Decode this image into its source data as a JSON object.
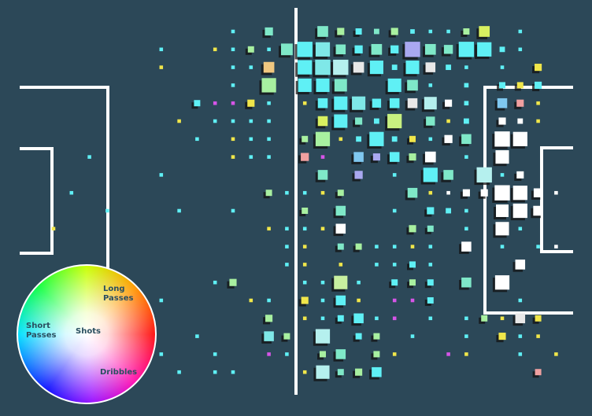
{
  "chart_data": {
    "type": "grid-squares",
    "legend": {
      "labels": [
        "Long Passes",
        "Short Passes",
        "Shots",
        "Dribbles"
      ]
    },
    "cells": [
      [
        10,
        0,
        0.2,
        "#5ff0f5"
      ],
      [
        12,
        0,
        0.45,
        "#7fe8c8"
      ],
      [
        15,
        0,
        0.6,
        "#7fe8c8"
      ],
      [
        16,
        0,
        0.4,
        "#a8f0a0"
      ],
      [
        17,
        0,
        0.35,
        "#5ff0f5"
      ],
      [
        18,
        0,
        0.3,
        "#7fe8c8"
      ],
      [
        19,
        0,
        0.4,
        "#a8f0a0"
      ],
      [
        20,
        0,
        0.25,
        "#5ff0f5"
      ],
      [
        21,
        0,
        0.2,
        "#5ff0f5"
      ],
      [
        22,
        0,
        0.2,
        "#5ff0f5"
      ],
      [
        23,
        0,
        0.35,
        "#a8f0a0"
      ],
      [
        24,
        0,
        0.6,
        "#d8f060"
      ],
      [
        26,
        0,
        0.2,
        "#5ff0f5"
      ],
      [
        6,
        1,
        0.2,
        "#5ff0f5"
      ],
      [
        9,
        1,
        0.2,
        "#f0e64a"
      ],
      [
        10,
        1,
        0.2,
        "#5ff0f5"
      ],
      [
        11,
        1,
        0.35,
        "#a8f0a0"
      ],
      [
        12,
        1,
        0.2,
        "#5ff0f5"
      ],
      [
        13,
        1,
        0.65,
        "#7fe8c8"
      ],
      [
        14,
        1,
        0.85,
        "#5ff0f5"
      ],
      [
        15,
        1,
        0.8,
        "#7fe8e8"
      ],
      [
        16,
        1,
        0.55,
        "#7fe8c8"
      ],
      [
        17,
        1,
        0.45,
        "#5ff0f5"
      ],
      [
        18,
        1,
        0.6,
        "#7fe8c8"
      ],
      [
        19,
        1,
        0.45,
        "#5ff0f5"
      ],
      [
        20,
        1,
        0.85,
        "#a9a8f0"
      ],
      [
        21,
        1,
        0.6,
        "#7fe8c8"
      ],
      [
        22,
        1,
        0.5,
        "#7fe8c8"
      ],
      [
        23,
        1,
        0.85,
        "#5ff0f5"
      ],
      [
        24,
        1,
        0.8,
        "#5ff0f5"
      ],
      [
        25,
        1,
        0.3,
        "#5ff0f5"
      ],
      [
        26,
        1,
        0.2,
        "#5ff0f5"
      ],
      [
        6,
        2,
        0.2,
        "#f0e64a"
      ],
      [
        10,
        2,
        0.2,
        "#5ff0f5"
      ],
      [
        11,
        2,
        0.2,
        "#5ff0f5"
      ],
      [
        12,
        2,
        0.6,
        "#f0c880"
      ],
      [
        14,
        2,
        0.8,
        "#5ff0f5"
      ],
      [
        15,
        2,
        0.85,
        "#7fe8e8"
      ],
      [
        16,
        2,
        0.85,
        "#b5f0ee"
      ],
      [
        17,
        2,
        0.6,
        "#e8e8e8"
      ],
      [
        18,
        2,
        0.75,
        "#5ff0f5"
      ],
      [
        19,
        2,
        0.3,
        "#5ff0f5"
      ],
      [
        20,
        2,
        0.75,
        "#5ff0f5"
      ],
      [
        21,
        2,
        0.55,
        "#e8e8e8"
      ],
      [
        22,
        2,
        0.3,
        "#5ff0f5"
      ],
      [
        23,
        2,
        0.2,
        "#5ff0f5"
      ],
      [
        25,
        2,
        0.2,
        "#5ff0f5"
      ],
      [
        27,
        2,
        0.4,
        "#f0e64a"
      ],
      [
        10,
        3,
        0.2,
        "#5ff0f5"
      ],
      [
        12,
        3,
        0.8,
        "#a8f0a0"
      ],
      [
        14,
        3,
        0.75,
        "#5ff0f5"
      ],
      [
        15,
        3,
        0.75,
        "#5ff0f5"
      ],
      [
        16,
        3,
        0.7,
        "#7fe8c8"
      ],
      [
        19,
        3,
        0.75,
        "#5ff0f5"
      ],
      [
        20,
        3,
        0.6,
        "#7fe8c8"
      ],
      [
        21,
        3,
        0.2,
        "#5ff0f5"
      ],
      [
        23,
        3,
        0.25,
        "#5ff0f5"
      ],
      [
        25,
        3,
        0.35,
        "#5ff0f5"
      ],
      [
        26,
        3,
        0.35,
        "#f0e64a"
      ],
      [
        27,
        3,
        0.4,
        "#5ff0f5"
      ],
      [
        8,
        4,
        0.35,
        "#5ff0f5"
      ],
      [
        9,
        4,
        0.2,
        "#d655e8"
      ],
      [
        10,
        4,
        0.2,
        "#d655e8"
      ],
      [
        11,
        4,
        0.4,
        "#f0e64a"
      ],
      [
        12,
        4,
        0.2,
        "#5ff0f5"
      ],
      [
        14,
        4,
        0.2,
        "#f0e64a"
      ],
      [
        15,
        4,
        0.55,
        "#5ff0f5"
      ],
      [
        16,
        4,
        0.75,
        "#5ff0f5"
      ],
      [
        17,
        4,
        0.75,
        "#7fe8e8"
      ],
      [
        18,
        4,
        0.5,
        "#5ff0f5"
      ],
      [
        19,
        4,
        0.55,
        "#5ff0f5"
      ],
      [
        20,
        4,
        0.55,
        "#e8e8e8"
      ],
      [
        21,
        4,
        0.7,
        "#b5f0ee"
      ],
      [
        22,
        4,
        0.4,
        "#ffffff"
      ],
      [
        23,
        4,
        0.25,
        "#5ff0f5"
      ],
      [
        25,
        4,
        0.55,
        "#7fc8f0"
      ],
      [
        26,
        4,
        0.4,
        "#f0a0a0"
      ],
      [
        27,
        4,
        0.2,
        "#f0e64a"
      ],
      [
        7,
        5,
        0.2,
        "#f0e64a"
      ],
      [
        9,
        5,
        0.2,
        "#5ff0f5"
      ],
      [
        10,
        5,
        0.2,
        "#5ff0f5"
      ],
      [
        11,
        5,
        0.2,
        "#5ff0f5"
      ],
      [
        12,
        5,
        0.2,
        "#5ff0f5"
      ],
      [
        15,
        5,
        0.55,
        "#d8f060"
      ],
      [
        16,
        5,
        0.75,
        "#5ff0f5"
      ],
      [
        17,
        5,
        0.4,
        "#7fe8c8"
      ],
      [
        18,
        5,
        0.3,
        "#5ff0f5"
      ],
      [
        19,
        5,
        0.8,
        "#c8f080"
      ],
      [
        21,
        5,
        0.5,
        "#7fe8c8"
      ],
      [
        22,
        5,
        0.2,
        "#f0e64a"
      ],
      [
        23,
        5,
        0.3,
        "#5ff0f5"
      ],
      [
        25,
        5,
        0.4,
        "#ffffff"
      ],
      [
        26,
        5,
        0.3,
        "#ffffff"
      ],
      [
        27,
        5,
        0.2,
        "#f0e64a"
      ],
      [
        8,
        6,
        0.2,
        "#5ff0f5"
      ],
      [
        10,
        6,
        0.2,
        "#f0e64a"
      ],
      [
        11,
        6,
        0.2,
        "#5ff0f5"
      ],
      [
        12,
        6,
        0.2,
        "#5ff0f5"
      ],
      [
        14,
        6,
        0.35,
        "#a8f0a0"
      ],
      [
        15,
        6,
        0.8,
        "#a8f0a0"
      ],
      [
        16,
        6,
        0.2,
        "#f0e64a"
      ],
      [
        17,
        6,
        0.3,
        "#5ff0f5"
      ],
      [
        18,
        6,
        0.8,
        "#5ff0f5"
      ],
      [
        19,
        6,
        0.3,
        "#5ff0f5"
      ],
      [
        20,
        6,
        0.35,
        "#f0e64a"
      ],
      [
        21,
        6,
        0.2,
        "#5ff0f5"
      ],
      [
        22,
        6,
        0.45,
        "#ffffff"
      ],
      [
        23,
        6,
        0.55,
        "#7fe8c8"
      ],
      [
        25,
        6,
        0.85,
        "#ffffff"
      ],
      [
        26,
        6,
        0.8,
        "#ffffff"
      ],
      [
        2,
        7,
        0.2,
        "#5ff0f5"
      ],
      [
        10,
        7,
        0.2,
        "#f0e64a"
      ],
      [
        11,
        7,
        0.2,
        "#5ff0f5"
      ],
      [
        12,
        7,
        0.2,
        "#5ff0f5"
      ],
      [
        14,
        7,
        0.45,
        "#f0a0a0"
      ],
      [
        15,
        7,
        0.2,
        "#d655e8"
      ],
      [
        17,
        7,
        0.55,
        "#7fc8f0"
      ],
      [
        18,
        7,
        0.4,
        "#a9a8f0"
      ],
      [
        19,
        7,
        0.55,
        "#5ff0f5"
      ],
      [
        20,
        7,
        0.4,
        "#a8f0a0"
      ],
      [
        21,
        7,
        0.6,
        "#ffffff"
      ],
      [
        23,
        7,
        0.2,
        "#5ff0f5"
      ],
      [
        25,
        7,
        0.75,
        "#ffffff"
      ],
      [
        6,
        8,
        0.2,
        "#5ff0f5"
      ],
      [
        15,
        8,
        0.55,
        "#7fe8c8"
      ],
      [
        17,
        8,
        0.45,
        "#a9a8f0"
      ],
      [
        19,
        8,
        0.2,
        "#5ff0f5"
      ],
      [
        21,
        8,
        0.8,
        "#5ff0f5"
      ],
      [
        22,
        8,
        0.55,
        "#7fe8c8"
      ],
      [
        24,
        8,
        0.85,
        "#b5f0ee"
      ],
      [
        25,
        8,
        0.2,
        "#5ff0f5"
      ],
      [
        26,
        8,
        0.4,
        "#ffffff"
      ],
      [
        1,
        9,
        0.2,
        "#5ff0f5"
      ],
      [
        12,
        9,
        0.35,
        "#a8f0a0"
      ],
      [
        13,
        9,
        0.2,
        "#5ff0f5"
      ],
      [
        14,
        9,
        0.2,
        "#5ff0f5"
      ],
      [
        15,
        9,
        0.2,
        "#f0e64a"
      ],
      [
        16,
        9,
        0.35,
        "#a8f0a0"
      ],
      [
        20,
        9,
        0.55,
        "#7fe8c8"
      ],
      [
        21,
        9,
        0.2,
        "#f0e64a"
      ],
      [
        22,
        9,
        0.2,
        "#ffffff"
      ],
      [
        23,
        9,
        0.4,
        "#ffffff"
      ],
      [
        24,
        9,
        0.4,
        "#ffffff"
      ],
      [
        25,
        9,
        0.85,
        "#ffffff"
      ],
      [
        26,
        9,
        0.8,
        "#ffffff"
      ],
      [
        27,
        9,
        0.5,
        "#ffffff"
      ],
      [
        28,
        9,
        0.2,
        "#ffffff"
      ],
      [
        3,
        10,
        0.2,
        "#5ff0f5"
      ],
      [
        7,
        10,
        0.2,
        "#5ff0f5"
      ],
      [
        10,
        10,
        0.2,
        "#5ff0f5"
      ],
      [
        14,
        10,
        0.35,
        "#a8f0a0"
      ],
      [
        16,
        10,
        0.55,
        "#7fe8c8"
      ],
      [
        19,
        10,
        0.2,
        "#5ff0f5"
      ],
      [
        21,
        10,
        0.4,
        "#5ff0f5"
      ],
      [
        22,
        10,
        0.3,
        "#5ff0f5"
      ],
      [
        23,
        10,
        0.2,
        "#5ff0f5"
      ],
      [
        25,
        10,
        0.7,
        "#ffffff"
      ],
      [
        26,
        10,
        0.8,
        "#ffffff"
      ],
      [
        27,
        10,
        0.55,
        "#ffffff"
      ],
      [
        0,
        11,
        0.2,
        "#f0e64a"
      ],
      [
        12,
        11,
        0.2,
        "#f0e64a"
      ],
      [
        13,
        11,
        0.2,
        "#5ff0f5"
      ],
      [
        14,
        11,
        0.2,
        "#5ff0f5"
      ],
      [
        15,
        11,
        0.2,
        "#f0e64a"
      ],
      [
        16,
        11,
        0.55,
        "#ffffff"
      ],
      [
        20,
        11,
        0.4,
        "#a8f0a0"
      ],
      [
        21,
        11,
        0.35,
        "#7fe8c8"
      ],
      [
        23,
        11,
        0.2,
        "#5ff0f5"
      ],
      [
        25,
        11,
        0.75,
        "#ffffff"
      ],
      [
        26,
        11,
        0.2,
        "#5ff0f5"
      ],
      [
        13,
        12,
        0.2,
        "#5ff0f5"
      ],
      [
        14,
        12,
        0.2,
        "#f0e64a"
      ],
      [
        16,
        12,
        0.35,
        "#7fe8c8"
      ],
      [
        17,
        12,
        0.35,
        "#a8f0a0"
      ],
      [
        18,
        12,
        0.2,
        "#5ff0f5"
      ],
      [
        19,
        12,
        0.2,
        "#5ff0f5"
      ],
      [
        20,
        12,
        0.2,
        "#f0e64a"
      ],
      [
        21,
        12,
        0.2,
        "#5ff0f5"
      ],
      [
        23,
        12,
        0.55,
        "#ffffff"
      ],
      [
        25,
        12,
        0.2,
        "#5ff0f5"
      ],
      [
        27,
        12,
        0.2,
        "#5ff0f5"
      ],
      [
        28,
        12,
        0.2,
        "#ffffff"
      ],
      [
        13,
        13,
        0.2,
        "#5ff0f5"
      ],
      [
        14,
        13,
        0.2,
        "#f0e64a"
      ],
      [
        16,
        13,
        0.2,
        "#f0e64a"
      ],
      [
        18,
        13,
        0.2,
        "#5ff0f5"
      ],
      [
        19,
        13,
        0.2,
        "#5ff0f5"
      ],
      [
        20,
        13,
        0.35,
        "#5ff0f5"
      ],
      [
        21,
        13,
        0.2,
        "#5ff0f5"
      ],
      [
        26,
        13,
        0.55,
        "#ffffff"
      ],
      [
        9,
        14,
        0.2,
        "#5ff0f5"
      ],
      [
        10,
        14,
        0.4,
        "#a8f0a0"
      ],
      [
        14,
        14,
        0.2,
        "#5ff0f5"
      ],
      [
        15,
        14,
        0.2,
        "#5ff0f5"
      ],
      [
        16,
        14,
        0.75,
        "#c8f0a0"
      ],
      [
        17,
        14,
        0.2,
        "#5ff0f5"
      ],
      [
        19,
        14,
        0.35,
        "#5ff0f5"
      ],
      [
        20,
        14,
        0.35,
        "#a8f0a0"
      ],
      [
        21,
        14,
        0.35,
        "#5ff0f5"
      ],
      [
        23,
        14,
        0.55,
        "#7fe8c8"
      ],
      [
        25,
        14,
        0.8,
        "#ffffff"
      ],
      [
        6,
        15,
        0.2,
        "#5ff0f5"
      ],
      [
        11,
        15,
        0.2,
        "#f0e64a"
      ],
      [
        12,
        15,
        0.2,
        "#5ff0f5"
      ],
      [
        14,
        15,
        0.4,
        "#f0e64a"
      ],
      [
        15,
        15,
        0.2,
        "#5ff0f5"
      ],
      [
        16,
        15,
        0.55,
        "#5ff0f5"
      ],
      [
        17,
        15,
        0.2,
        "#f0e64a"
      ],
      [
        19,
        15,
        0.2,
        "#d655e8"
      ],
      [
        20,
        15,
        0.2,
        "#d655e8"
      ],
      [
        21,
        15,
        0.35,
        "#5ff0f5"
      ],
      [
        26,
        15,
        0.2,
        "#5ff0f5"
      ],
      [
        12,
        16,
        0.4,
        "#a8f0a0"
      ],
      [
        14,
        16,
        0.2,
        "#f0e64a"
      ],
      [
        15,
        16,
        0.2,
        "#5ff0f5"
      ],
      [
        16,
        16,
        0.35,
        "#5ff0f5"
      ],
      [
        17,
        16,
        0.55,
        "#5ff0f5"
      ],
      [
        18,
        16,
        0.2,
        "#5ff0f5"
      ],
      [
        19,
        16,
        0.2,
        "#d655e8"
      ],
      [
        21,
        16,
        0.2,
        "#5ff0f5"
      ],
      [
        23,
        16,
        0.2,
        "#5ff0f5"
      ],
      [
        24,
        16,
        0.35,
        "#a8f0a0"
      ],
      [
        25,
        16,
        0.2,
        "#f0e64a"
      ],
      [
        26,
        16,
        0.55,
        "#e8e8e8"
      ],
      [
        27,
        16,
        0.35,
        "#f0e64a"
      ],
      [
        8,
        17,
        0.2,
        "#5ff0f5"
      ],
      [
        12,
        17,
        0.55,
        "#7fe8e8"
      ],
      [
        13,
        17,
        0.35,
        "#a8f0a0"
      ],
      [
        15,
        17,
        0.8,
        "#b5f0ee"
      ],
      [
        17,
        17,
        0.35,
        "#5ff0f5"
      ],
      [
        18,
        17,
        0.35,
        "#a8f0a0"
      ],
      [
        20,
        17,
        0.2,
        "#5ff0f5"
      ],
      [
        23,
        17,
        0.2,
        "#5ff0f5"
      ],
      [
        25,
        17,
        0.4,
        "#f0e64a"
      ],
      [
        26,
        17,
        0.2,
        "#5ff0f5"
      ],
      [
        27,
        17,
        0.2,
        "#f0e64a"
      ],
      [
        6,
        18,
        0.2,
        "#5ff0f5"
      ],
      [
        9,
        18,
        0.2,
        "#5ff0f5"
      ],
      [
        12,
        18,
        0.2,
        "#d655e8"
      ],
      [
        13,
        18,
        0.2,
        "#5ff0f5"
      ],
      [
        15,
        18,
        0.35,
        "#a8f0a0"
      ],
      [
        16,
        18,
        0.55,
        "#7fe8c8"
      ],
      [
        18,
        18,
        0.35,
        "#a8f0a0"
      ],
      [
        19,
        18,
        0.2,
        "#f0e64a"
      ],
      [
        22,
        18,
        0.2,
        "#d655e8"
      ],
      [
        23,
        18,
        0.2,
        "#f0e64a"
      ],
      [
        26,
        18,
        0.2,
        "#5ff0f5"
      ],
      [
        28,
        18,
        0.2,
        "#f0e64a"
      ],
      [
        7,
        19,
        0.2,
        "#5ff0f5"
      ],
      [
        9,
        19,
        0.2,
        "#5ff0f5"
      ],
      [
        10,
        19,
        0.2,
        "#5ff0f5"
      ],
      [
        14,
        19,
        0.2,
        "#f0e64a"
      ],
      [
        15,
        19,
        0.75,
        "#b5f0ee"
      ],
      [
        16,
        19,
        0.35,
        "#7fe8c8"
      ],
      [
        17,
        19,
        0.4,
        "#a8f0a0"
      ],
      [
        18,
        19,
        0.55,
        "#5ff0f5"
      ],
      [
        27,
        19,
        0.35,
        "#f0a0a0"
      ]
    ]
  }
}
